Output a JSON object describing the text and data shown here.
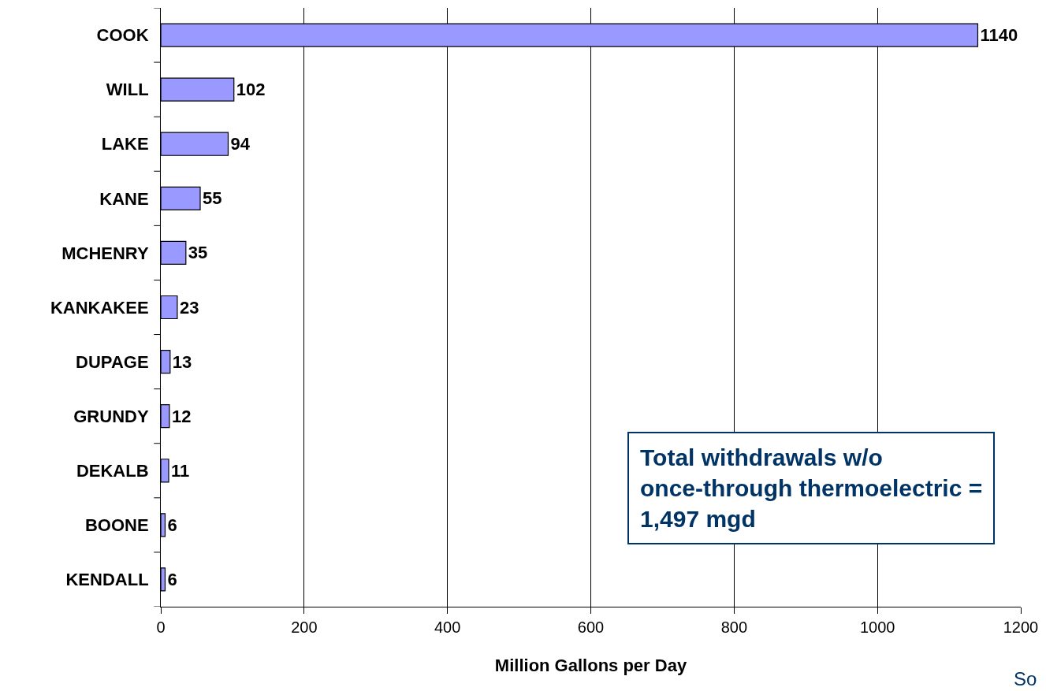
{
  "chart_data": {
    "type": "bar",
    "orientation": "horizontal",
    "xlabel": "Million Gallons per Day",
    "categories": [
      "COOK",
      "WILL",
      "LAKE",
      "KANE",
      "MCHENRY",
      "KANKAKEE",
      "DUPAGE",
      "GRUNDY",
      "DEKALB",
      "BOONE",
      "KENDALL"
    ],
    "values": [
      1140,
      102,
      94,
      55,
      35,
      23,
      13,
      12,
      11,
      6,
      6
    ],
    "color": "#9999ff",
    "data_labels": true,
    "xlim": [
      0,
      1200
    ],
    "xticks": [
      0,
      200,
      400,
      600,
      800,
      1000,
      1200
    ],
    "grid": "x",
    "legend": false,
    "annotations": [
      "Total withdrawals w/o\nonce-through thermoelectric =\n1,497 mgd",
      "So"
    ]
  }
}
